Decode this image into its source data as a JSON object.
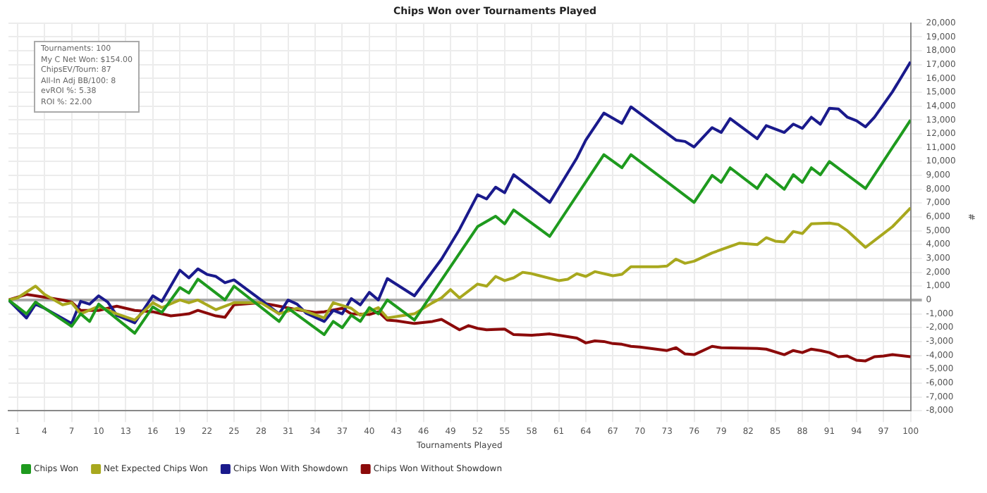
{
  "chart_data": {
    "type": "line",
    "title": "Chips Won over Tournaments Played",
    "xlabel": "Tournaments Played",
    "ylabel": "#",
    "annotations": [
      "Tournaments: 100",
      "My C Net Won: $154.00",
      "ChipsEV/Tourn: 87",
      "All-In Adj BB/100: 8",
      "evROI %: 5.38",
      "ROI %: 22.00"
    ],
    "xlim": [
      0,
      100
    ],
    "xticks": [
      1,
      4,
      7,
      10,
      13,
      16,
      19,
      22,
      25,
      28,
      31,
      34,
      37,
      40,
      43,
      46,
      49,
      52,
      55,
      58,
      61,
      64,
      67,
      70,
      73,
      76,
      79,
      82,
      85,
      88,
      91,
      94,
      97,
      100
    ],
    "ylim": [
      -8000,
      20000
    ],
    "yticks": [
      {
        "value": -8000,
        "label": "-8,000"
      },
      {
        "value": -7000,
        "label": "-7,000"
      },
      {
        "value": -6000,
        "label": "-6,000"
      },
      {
        "value": -5000,
        "label": "-5,000"
      },
      {
        "value": -4000,
        "label": "-4,000"
      },
      {
        "value": -3000,
        "label": "-3,000"
      },
      {
        "value": -2000,
        "label": "-2,000"
      },
      {
        "value": -1000,
        "label": "-1,000"
      },
      0,
      {
        "value": 1000,
        "label": "1,000"
      },
      {
        "value": 2000,
        "label": "2,000"
      },
      {
        "value": 3000,
        "label": "3,000"
      },
      {
        "value": 4000,
        "label": "4,000"
      },
      {
        "value": 5000,
        "label": "5,000"
      },
      {
        "value": 6000,
        "label": "6,000"
      },
      {
        "value": 7000,
        "label": "7,000"
      },
      {
        "value": 8000,
        "label": "8,000"
      },
      {
        "value": 9000,
        "label": "9,000"
      },
      {
        "value": 10000,
        "label": "10,000"
      },
      {
        "value": 11000,
        "label": "11,000"
      },
      {
        "value": 12000,
        "label": "12,000"
      },
      {
        "value": 13000,
        "label": "13,000"
      },
      {
        "value": 14000,
        "label": "14,000"
      },
      {
        "value": 15000,
        "label": "15,000"
      },
      {
        "value": 16000,
        "label": "16,000"
      },
      {
        "value": 17000,
        "label": "17,000"
      },
      {
        "value": 18000,
        "label": "18,000"
      },
      {
        "value": 19000,
        "label": "19,000"
      },
      {
        "value": 20000,
        "label": "20,000"
      }
    ],
    "grid": true,
    "legend": "bottom",
    "marker": "none",
    "line_style": "solid",
    "series": [
      {
        "name": "Chips Won",
        "color": "#1e9a1e",
        "x": [
          0,
          2,
          3,
          7,
          8,
          9,
          10,
          14,
          16,
          17,
          19,
          20,
          21,
          24,
          25,
          30,
          31,
          35,
          36,
          37,
          38,
          39,
          40,
          41,
          42,
          45,
          52,
          54,
          55,
          56,
          60,
          66,
          68,
          69,
          76,
          78,
          79,
          80,
          83,
          84,
          86,
          87,
          88,
          89,
          90,
          91,
          95,
          100
        ],
        "values": [
          0,
          -1000,
          -150,
          -1900,
          -1000,
          -1550,
          -300,
          -2400,
          -500,
          -900,
          900,
          500,
          1500,
          0,
          1000,
          -1550,
          -600,
          -2500,
          -1550,
          -2000,
          -1100,
          -1550,
          -550,
          -1000,
          0,
          -1450,
          5300,
          6050,
          5500,
          6500,
          4600,
          10500,
          9550,
          10500,
          7050,
          9000,
          8500,
          9550,
          8050,
          9050,
          8000,
          9050,
          8500,
          9550,
          9050,
          10000,
          8050,
          13000
        ]
      },
      {
        "name": "Net Expected Chips Won",
        "color": "#a8a81e",
        "x": [
          0,
          1,
          3,
          4,
          6,
          7,
          8,
          10,
          12,
          14,
          16,
          17,
          19,
          20,
          21,
          23,
          25,
          28,
          30,
          32,
          35,
          36,
          38,
          39,
          41,
          42,
          45,
          47,
          48,
          49,
          50,
          52,
          53,
          54,
          55,
          56,
          57,
          58,
          61,
          62,
          63,
          64,
          65,
          67,
          68,
          69,
          72,
          73,
          74,
          75,
          76,
          78,
          81,
          83,
          84,
          85,
          86,
          87,
          88,
          89,
          91,
          92,
          93,
          95,
          97,
          98,
          100
        ],
        "values": [
          0,
          150,
          1000,
          400,
          -350,
          -200,
          -1000,
          -450,
          -1000,
          -1450,
          -200,
          -550,
          0,
          -200,
          0,
          -700,
          -200,
          -200,
          -1000,
          -600,
          -1300,
          -200,
          -600,
          -1100,
          -550,
          -1300,
          -1000,
          -200,
          150,
          750,
          150,
          1150,
          1000,
          1700,
          1400,
          1600,
          2000,
          1900,
          1400,
          1500,
          1900,
          1700,
          2050,
          1750,
          1850,
          2400,
          2400,
          2450,
          2950,
          2650,
          2800,
          3400,
          4100,
          4000,
          4500,
          4250,
          4200,
          4950,
          4800,
          5500,
          5550,
          5450,
          5000,
          3800,
          4800,
          5300,
          6650
        ]
      },
      {
        "name": "Chips Won With Showdown",
        "color": "#1a1a8c",
        "x": [
          0,
          2,
          3,
          4,
          7,
          8,
          9,
          10,
          11,
          12,
          14,
          16,
          17,
          19,
          20,
          21,
          22,
          23,
          24,
          25,
          28,
          30,
          31,
          32,
          33,
          35,
          36,
          37,
          38,
          39,
          40,
          41,
          42,
          45,
          48,
          50,
          52,
          53,
          54,
          55,
          56,
          60,
          63,
          64,
          66,
          68,
          69,
          74,
          75,
          76,
          78,
          79,
          80,
          83,
          84,
          86,
          87,
          88,
          89,
          90,
          91,
          92,
          93,
          94,
          95,
          96,
          98,
          100
        ],
        "values": [
          0,
          -1300,
          -300,
          -600,
          -1700,
          -100,
          -300,
          300,
          -150,
          -1100,
          -1650,
          300,
          -100,
          2150,
          1600,
          2250,
          1850,
          1700,
          1250,
          1450,
          0,
          -1000,
          0,
          -300,
          -950,
          -1550,
          -750,
          -1000,
          100,
          -350,
          550,
          0,
          1550,
          300,
          2950,
          5100,
          7600,
          7300,
          8150,
          7750,
          9050,
          7050,
          10250,
          11550,
          13500,
          12750,
          13950,
          11550,
          11450,
          11050,
          12450,
          12100,
          13100,
          11650,
          12600,
          12100,
          12700,
          12400,
          13200,
          12700,
          13850,
          13800,
          13200,
          12950,
          12500,
          13200,
          15050,
          17200
        ]
      },
      {
        "name": "Chips Won Without Showdown",
        "color": "#8b0a0a",
        "x": [
          0,
          2,
          4,
          6,
          7,
          8,
          10,
          12,
          14,
          16,
          18,
          20,
          21,
          23,
          24,
          25,
          28,
          30,
          32,
          34,
          35,
          37,
          38,
          40,
          41,
          42,
          43,
          45,
          47,
          48,
          50,
          51,
          52,
          53,
          55,
          56,
          58,
          60,
          61,
          63,
          64,
          65,
          66,
          67,
          68,
          69,
          70,
          73,
          74,
          75,
          76,
          78,
          79,
          83,
          84,
          86,
          87,
          88,
          89,
          90,
          91,
          92,
          93,
          94,
          95,
          96,
          97,
          98,
          100
        ],
        "values": [
          0,
          400,
          200,
          0,
          -150,
          -750,
          -750,
          -450,
          -750,
          -850,
          -1150,
          -1000,
          -750,
          -1150,
          -1250,
          -350,
          -200,
          -450,
          -700,
          -900,
          -850,
          -600,
          -1000,
          -1050,
          -850,
          -1450,
          -1500,
          -1700,
          -1550,
          -1400,
          -2150,
          -1850,
          -2050,
          -2150,
          -2100,
          -2500,
          -2550,
          -2450,
          -2550,
          -2750,
          -3100,
          -2950,
          -3000,
          -3150,
          -3200,
          -3350,
          -3400,
          -3650,
          -3450,
          -3900,
          -3950,
          -3350,
          -3450,
          -3500,
          -3550,
          -3950,
          -3650,
          -3800,
          -3550,
          -3650,
          -3800,
          -4100,
          -4050,
          -4350,
          -4400,
          -4100,
          -4050,
          -3950,
          -4100
        ]
      }
    ]
  }
}
